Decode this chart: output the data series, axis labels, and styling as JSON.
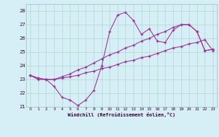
{
  "xlabel": "Windchill (Refroidissement éolien,°C)",
  "bg_color": "#d6eef5",
  "line_color": "#993399",
  "grid_color": "#b0d4cc",
  "x": [
    0,
    1,
    2,
    3,
    4,
    5,
    6,
    7,
    8,
    9,
    10,
    11,
    12,
    13,
    14,
    15,
    16,
    17,
    18,
    19,
    20,
    21,
    22,
    23
  ],
  "line1": [
    23.3,
    23.0,
    23.0,
    22.5,
    21.7,
    21.5,
    21.1,
    21.5,
    22.2,
    24.0,
    26.5,
    27.7,
    27.9,
    27.3,
    26.3,
    26.7,
    25.8,
    25.7,
    26.6,
    27.0,
    27.0,
    26.5,
    25.1,
    25.2
  ],
  "line2": [
    23.3,
    23.1,
    23.0,
    23.0,
    23.1,
    23.2,
    23.3,
    23.5,
    23.6,
    23.8,
    23.9,
    24.1,
    24.3,
    24.4,
    24.6,
    24.7,
    24.9,
    25.1,
    25.3,
    25.4,
    25.6,
    25.7,
    25.9,
    25.1
  ],
  "line3": [
    23.3,
    23.1,
    23.0,
    23.0,
    23.2,
    23.4,
    23.7,
    23.9,
    24.2,
    24.5,
    24.8,
    25.0,
    25.3,
    25.5,
    25.8,
    26.0,
    26.3,
    26.5,
    26.8,
    27.0,
    27.0,
    26.5,
    25.1,
    25.2
  ],
  "ylim_min": 21,
  "ylim_max": 28,
  "xlim_min": 0,
  "xlim_max": 23
}
